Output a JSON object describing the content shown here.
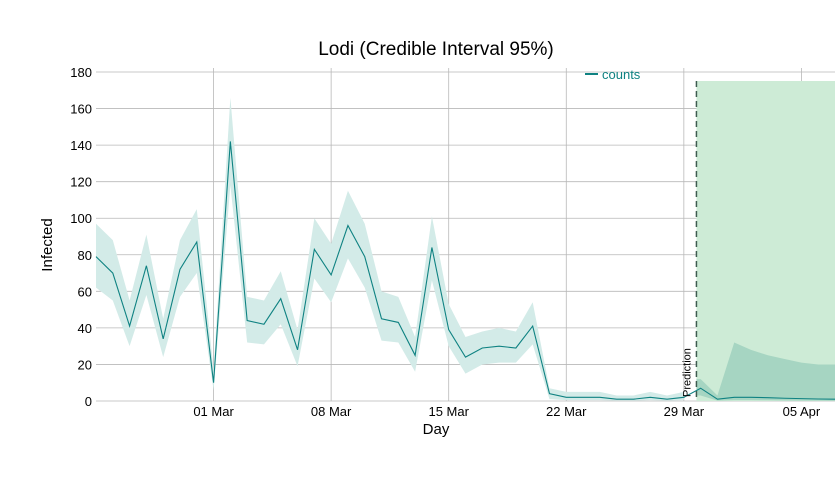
{
  "chart_data": {
    "type": "line",
    "title": "Lodi (Credible Interval 95%)",
    "xlabel": "Day",
    "ylabel": "Infected",
    "ylim": [
      0,
      180
    ],
    "y_ticks": [
      0,
      20,
      40,
      60,
      80,
      100,
      120,
      140,
      160,
      180
    ],
    "x_tick_labels": [
      "01 Mar",
      "08 Mar",
      "15 Mar",
      "22 Mar",
      "29 Mar",
      "05 Apr"
    ],
    "x_tick_days": [
      10,
      17,
      24,
      31,
      38,
      45
    ],
    "grid": true,
    "legend": {
      "placement": "top-center",
      "entries": [
        "counts"
      ]
    },
    "prediction_label": "Prediction",
    "prediction_start_day": 38.75,
    "colors": {
      "line": "#0f8282",
      "band": "#d3ebe8",
      "prediction_shade": "#cdebd6",
      "prediction_band": "#a6d5c2",
      "prediction_divider": "#3e5c50",
      "grid": "#b8b8b8"
    },
    "series": [
      {
        "name": "counts",
        "x": [
          3,
          4,
          5,
          6,
          7,
          8,
          9,
          10,
          11,
          12,
          13,
          14,
          15,
          16,
          17,
          18,
          19,
          20,
          21,
          22,
          23,
          24,
          25,
          26,
          27,
          28,
          29,
          30,
          31,
          32,
          33,
          34,
          35,
          36,
          37,
          38,
          39,
          40,
          41,
          42,
          43,
          44,
          45,
          46,
          47
        ],
        "values": [
          79,
          70,
          41,
          74,
          34,
          72,
          87,
          10,
          142,
          44,
          42,
          56,
          28,
          83,
          69,
          96,
          79,
          45,
          43,
          25,
          84,
          39,
          24,
          29,
          30,
          29,
          41,
          4,
          2,
          2,
          2,
          1,
          1,
          2,
          1,
          2,
          7,
          1,
          2,
          2,
          1.8,
          1.5,
          1.3,
          1.1,
          1.0
        ],
        "lower": [
          62,
          55,
          30,
          58,
          24,
          57,
          70,
          6,
          118,
          32,
          31,
          42,
          19,
          67,
          54,
          78,
          62,
          33,
          32,
          16,
          66,
          30,
          15,
          20,
          21,
          21,
          31,
          1,
          0.5,
          0.5,
          0.5,
          0.2,
          0.2,
          0.5,
          0.2,
          0.5,
          3,
          0.2,
          0.5,
          0.5,
          0.4,
          0.3,
          0.2,
          0.2,
          0.1
        ],
        "upper": [
          97,
          88,
          55,
          91,
          45,
          88,
          105,
          17,
          166,
          57,
          55,
          71,
          39,
          100,
          86,
          115,
          97,
          60,
          57,
          35,
          101,
          53,
          35,
          38,
          40,
          38,
          54,
          7,
          5,
          5,
          5,
          3,
          3,
          5,
          3,
          5,
          12,
          3,
          32,
          28,
          25,
          23,
          21,
          20,
          20
        ]
      }
    ]
  }
}
